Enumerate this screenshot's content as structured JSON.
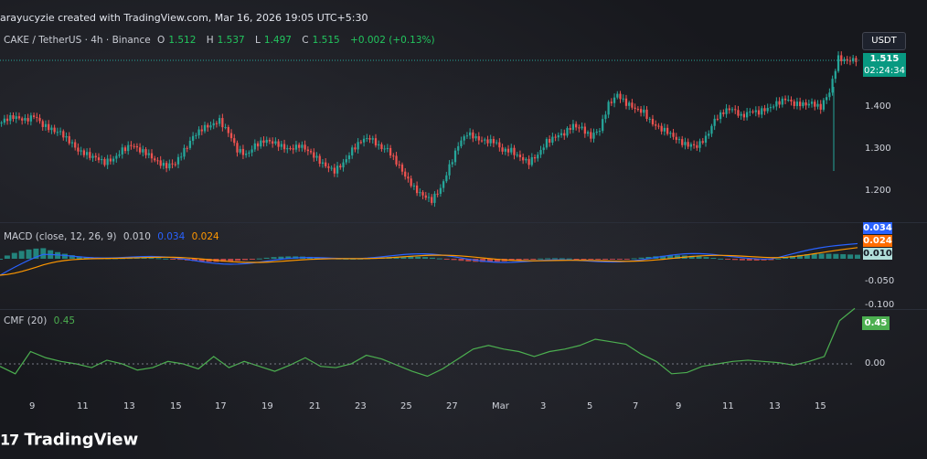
{
  "header": {
    "text": "arayucyzie created with TradingView.com, Mar 16, 2026 19:05 UTC+5:30"
  },
  "symbol": {
    "pair": "CAKE / TetherUS · 4h · Binance",
    "o_label": "O",
    "o_value": "1.512",
    "h_label": "H",
    "h_value": "1.537",
    "l_label": "L",
    "l_value": "1.497",
    "c_label": "C",
    "c_value": "1.515",
    "change": "+0.002 (+0.13%)"
  },
  "currency_button": "USDT",
  "price_tag": {
    "price": "1.515",
    "countdown": "02:24:34"
  },
  "price_axis": [
    "1.400",
    "1.300",
    "1.200"
  ],
  "macd": {
    "label": "MACD (close, 12, 26, 9)",
    "hist": "0.010",
    "macd": "0.034",
    "signal": "0.024",
    "axis": [
      "-0.050",
      "-0.100"
    ]
  },
  "cmf": {
    "label": "CMF (20)",
    "value": "0.45",
    "axis": [
      "0.00"
    ]
  },
  "x_ticks": [
    "9",
    "11",
    "13",
    "15",
    "17",
    "19",
    "21",
    "23",
    "25",
    "27",
    "Mar",
    "3",
    "5",
    "7",
    "9",
    "11",
    "13",
    "15"
  ],
  "brand": "TradingView",
  "colors": {
    "up": "#26a69a",
    "down": "#ef5350",
    "macd": "#2962ff",
    "signal": "#ff9800",
    "cmf": "#4caf50",
    "accent": "#089981"
  },
  "chart_data": [
    {
      "type": "candlestick",
      "title": "CAKE / TetherUS · 4h · Binance",
      "x_ticks": [
        "9",
        "11",
        "13",
        "15",
        "17",
        "19",
        "21",
        "23",
        "25",
        "27",
        "Mar",
        "3",
        "5",
        "7",
        "9",
        "11",
        "13",
        "15"
      ],
      "ylim": [
        1.17,
        1.57
      ],
      "close_path": [
        1.36,
        1.375,
        1.38,
        1.37,
        1.38,
        1.36,
        1.35,
        1.34,
        1.32,
        1.3,
        1.29,
        1.28,
        1.27,
        1.28,
        1.3,
        1.31,
        1.3,
        1.29,
        1.27,
        1.26,
        1.27,
        1.3,
        1.33,
        1.35,
        1.36,
        1.37,
        1.34,
        1.3,
        1.29,
        1.31,
        1.32,
        1.32,
        1.31,
        1.3,
        1.31,
        1.3,
        1.28,
        1.26,
        1.25,
        1.27,
        1.3,
        1.32,
        1.33,
        1.31,
        1.3,
        1.27,
        1.24,
        1.21,
        1.19,
        1.18,
        1.21,
        1.26,
        1.31,
        1.34,
        1.33,
        1.32,
        1.32,
        1.3,
        1.3,
        1.28,
        1.27,
        1.29,
        1.32,
        1.33,
        1.34,
        1.36,
        1.35,
        1.33,
        1.35,
        1.41,
        1.43,
        1.41,
        1.4,
        1.39,
        1.36,
        1.35,
        1.34,
        1.32,
        1.31,
        1.31,
        1.33,
        1.37,
        1.39,
        1.4,
        1.38,
        1.39,
        1.39,
        1.4,
        1.41,
        1.42,
        1.41,
        1.41,
        1.41,
        1.4,
        1.44,
        1.52,
        1.51,
        1.515
      ],
      "last": 1.515
    },
    {
      "type": "line",
      "title": "MACD (close, 12, 26, 9)",
      "series": [
        {
          "name": "MACD",
          "last": 0.034
        },
        {
          "name": "Signal",
          "last": 0.024
        },
        {
          "name": "Histogram",
          "last": 0.01
        }
      ]
    },
    {
      "type": "line",
      "title": "CMF (20)",
      "series": [
        {
          "name": "CMF",
          "values": [
            -0.02,
            -0.08,
            0.1,
            0.05,
            0.02,
            0.0,
            -0.03,
            0.03,
            0.0,
            -0.05,
            -0.03,
            0.02,
            0.0,
            -0.04,
            0.06,
            -0.03,
            0.02,
            -0.02,
            -0.06,
            -0.01,
            0.05,
            -0.02,
            -0.03,
            0.0,
            0.07,
            0.04,
            -0.01,
            -0.06,
            -0.1,
            -0.04,
            0.04,
            0.12,
            0.15,
            0.12,
            0.1,
            0.06,
            0.1,
            0.12,
            0.15,
            0.2,
            0.18,
            0.16,
            0.08,
            0.02,
            -0.08,
            -0.07,
            -0.02,
            0.0,
            0.02,
            0.03,
            0.02,
            0.01,
            -0.01,
            0.02,
            0.06,
            0.35,
            0.45
          ],
          "last": 0.45
        }
      ],
      "ylim": [
        -0.2,
        0.5
      ]
    }
  ]
}
